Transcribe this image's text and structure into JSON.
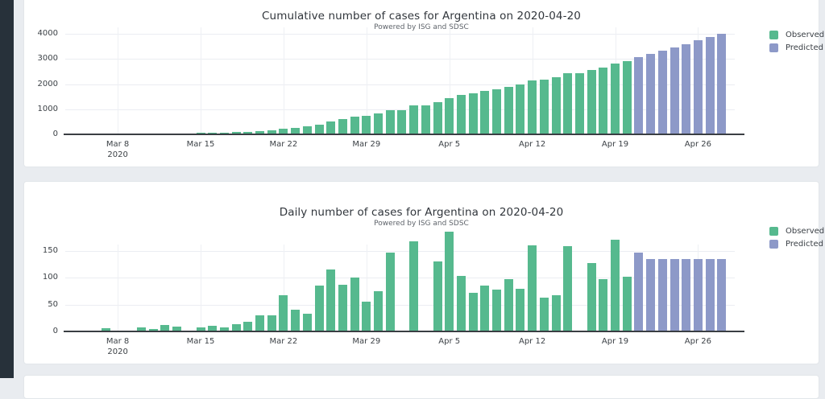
{
  "ui": {
    "sidebar_color": "#27313a",
    "page_bg": "#e9ecf0",
    "card_bg": "#ffffff",
    "axis_color": "#3a3e43",
    "tick_text_color": "#3c4146",
    "title_color": "#31363c",
    "subtitle_color": "#5f646b",
    "gridline_color": "#ebedf2",
    "observed_color": "#56b98e",
    "predicted_color": "#8d99c8"
  },
  "chart_data": [
    {
      "type": "bar",
      "title": "Cumulative number of cases for Argentina on 2020-04-20",
      "subtitle": "Powered by ISG and SDSC",
      "xlabel": "",
      "ylabel": "",
      "x_start_date": "2020-03-05",
      "x_end_date": "2020-04-28",
      "ylim": [
        0,
        4200
      ],
      "y_ticks": [
        0,
        1000,
        2000,
        3000,
        4000
      ],
      "grid": true,
      "legend_position": "top-right",
      "x_ticks": [
        {
          "label": "Mar 8",
          "sublabel": "2020",
          "date": "2020-03-08"
        },
        {
          "label": "Mar 15",
          "date": "2020-03-15"
        },
        {
          "label": "Mar 22",
          "date": "2020-03-22"
        },
        {
          "label": "Mar 29",
          "date": "2020-03-29"
        },
        {
          "label": "Apr 5",
          "date": "2020-04-05"
        },
        {
          "label": "Apr 12",
          "date": "2020-04-12"
        },
        {
          "label": "Apr 19",
          "date": "2020-04-19"
        },
        {
          "label": "Apr 26",
          "date": "2020-04-26"
        }
      ],
      "series": [
        {
          "name": "Observed",
          "color": "#56b98e",
          "start_date": "2020-03-05",
          "values": [
            1,
            2,
            8,
            10,
            12,
            19,
            24,
            36,
            45,
            47,
            55,
            65,
            73,
            87,
            105,
            135,
            165,
            232,
            272,
            305,
            391,
            506,
            593,
            694,
            749,
            824,
            970,
            970,
            1137,
            1137,
            1267,
            1453,
            1556,
            1628,
            1714,
            1792,
            1890,
            1969,
            2129,
            2192,
            2259,
            2418,
            2418,
            2545,
            2642,
            2812,
            2914
          ]
        },
        {
          "name": "Predicted",
          "color": "#8d99c8",
          "start_date": "2020-04-21",
          "values": [
            3060,
            3194,
            3328,
            3462,
            3596,
            3730,
            3864,
            3998
          ]
        }
      ]
    },
    {
      "type": "bar",
      "title": "Daily number of cases for Argentina on 2020-04-20",
      "subtitle": "Powered by ISG and SDSC",
      "xlabel": "",
      "ylabel": "",
      "x_start_date": "2020-03-05",
      "x_end_date": "2020-04-28",
      "ylim": [
        0,
        190
      ],
      "y_ticks": [
        0,
        50,
        100,
        150
      ],
      "grid": true,
      "legend_position": "top-right",
      "x_ticks": [
        {
          "label": "Mar 8",
          "sublabel": "2020",
          "date": "2020-03-08"
        },
        {
          "label": "Mar 15",
          "date": "2020-03-15"
        },
        {
          "label": "Mar 22",
          "date": "2020-03-22"
        },
        {
          "label": "Mar 29",
          "date": "2020-03-29"
        },
        {
          "label": "Apr 5",
          "date": "2020-04-05"
        },
        {
          "label": "Apr 12",
          "date": "2020-04-12"
        },
        {
          "label": "Apr 19",
          "date": "2020-04-19"
        },
        {
          "label": "Apr 26",
          "date": "2020-04-26"
        }
      ],
      "series": [
        {
          "name": "Observed",
          "color": "#56b98e",
          "start_date": "2020-03-05",
          "values": [
            1,
            1,
            6,
            2,
            2,
            7,
            5,
            12,
            9,
            2,
            8,
            10,
            8,
            14,
            18,
            30,
            30,
            67,
            40,
            33,
            86,
            115,
            87,
            101,
            55,
            75,
            146,
            0,
            167,
            0,
            130,
            186,
            103,
            72,
            86,
            78,
            98,
            79,
            160,
            63,
            67,
            159,
            0,
            127,
            97,
            170,
            102
          ]
        },
        {
          "name": "Predicted",
          "color": "#8d99c8",
          "start_date": "2020-04-21",
          "values": [
            146,
            134,
            134,
            134,
            134,
            134,
            134,
            134
          ]
        }
      ]
    }
  ]
}
